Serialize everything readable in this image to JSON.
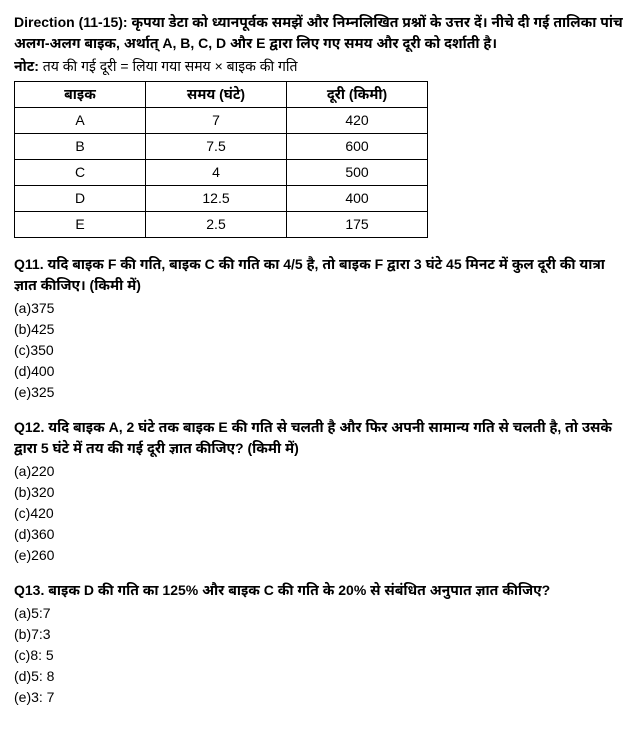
{
  "direction": {
    "label": "Direction (11-15):",
    "text": " कृपया डेटा को ध्यानपूर्वक समझें और निम्नलिखित प्रश्नों के उत्तर दें। नीचे दी गई तालिका पांच अलग-अलग बाइक, अर्थात् A, B, C, D और E द्वारा लिए गए समय और दूरी को दर्शाती है।"
  },
  "note": {
    "label": "नोट:",
    "text": " तय की गई दूरी = लिया गया समय × बाइक की गति"
  },
  "table": {
    "headers": {
      "bike": "बाइक",
      "time": "समय (घंटे)",
      "distance": "दूरी (किमी)"
    },
    "rows": [
      {
        "bike": "A",
        "time": "7",
        "distance": "420"
      },
      {
        "bike": "B",
        "time": "7.5",
        "distance": "600"
      },
      {
        "bike": "C",
        "time": "4",
        "distance": "500"
      },
      {
        "bike": "D",
        "time": "12.5",
        "distance": "400"
      },
      {
        "bike": "E",
        "time": "2.5",
        "distance": "175"
      }
    ]
  },
  "questions": [
    {
      "q": "Q11. यदि बाइक F की गति, बाइक C की गति का 4/5 है, तो बाइक F द्वारा 3 घंटे 45 मिनट में कुल दूरी की यात्रा ज्ञात कीजिए। (किमी में)",
      "opts": [
        "(a)375",
        "(b)425",
        "(c)350",
        "(d)400",
        "(e)325"
      ]
    },
    {
      "q": "Q12. यदि बाइक A, 2 घंटे तक बाइक E की गति से चलती है और फिर अपनी सामान्य गति से चलती है, तो उसके द्वारा 5 घंटे में तय की गई दूरी ज्ञात कीजिए? (किमी में)",
      "opts": [
        "(a)220",
        "(b)320",
        "(c)420",
        "(d)360",
        "(e)260"
      ]
    },
    {
      "q": "Q13. बाइक D की गति का 125% और बाइक C की गति के 20% से संबंधित अनुपात ज्ञात कीजिए?",
      "opts": [
        "(a)5:7",
        "(b)7:3",
        "(c)8: 5",
        "(d)5: 8",
        "(e)3: 7"
      ]
    }
  ]
}
